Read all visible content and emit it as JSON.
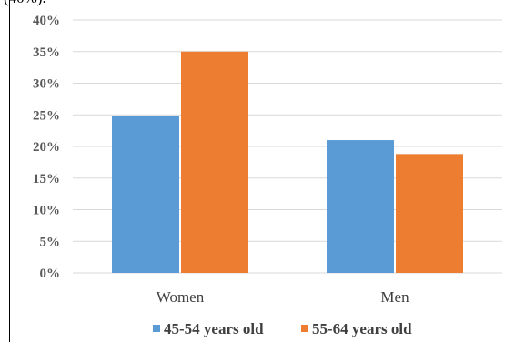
{
  "header_fragment": "(40%).",
  "chart_data": {
    "type": "bar",
    "categories": [
      "Women",
      "Men"
    ],
    "series": [
      {
        "name": "45-54 years old",
        "values": [
          24.8,
          21.0
        ],
        "color": "#5b9bd5"
      },
      {
        "name": "55-64 years old",
        "values": [
          35.0,
          18.8
        ],
        "color": "#ed7d31"
      }
    ],
    "ylim": [
      0,
      40
    ],
    "ytick_labels": [
      "0%",
      "5%",
      "10%",
      "15%",
      "20%",
      "25%",
      "30%",
      "35%",
      "40%"
    ],
    "grid": true,
    "legend_position": "bottom"
  }
}
